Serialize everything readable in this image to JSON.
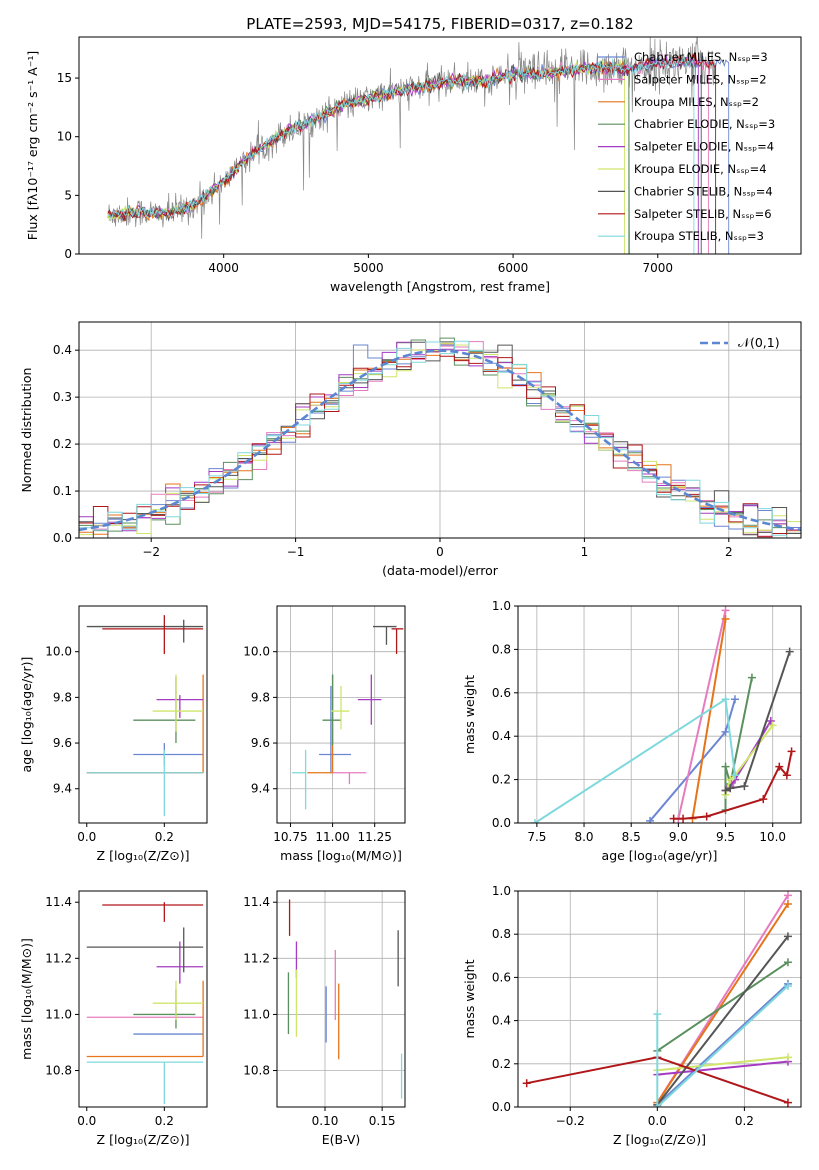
{
  "page": {
    "title": "PLATE=2593, MJD=54175, FIBERID=0317, z=0.182"
  },
  "colors": {
    "Chabrier MILES": "#6b86d2",
    "Salpeter MILES": "#e77bc0",
    "Kroupa MILES": "#e5741a",
    "Chabrier ELODIE": "#5b8f5e",
    "Salpeter ELODIE": "#a43bc2",
    "Kroupa ELODIE": "#cfe56b",
    "Chabrier STELIB": "#555555",
    "Salpeter STELIB": "#b0171a",
    "Kroupa STELIB": "#7fd8dd",
    "data": "#888888"
  },
  "chart_data": [
    {
      "id": "spectrum",
      "type": "line",
      "title": "PLATE=2593, MJD=54175, FIBERID=0317, z=0.182",
      "xlabel": "wavelength [Angstrom, rest frame]",
      "ylabel": "Flux [fλ10⁻¹⁷ erg cm⁻² s⁻¹ A⁻¹]",
      "xlim": [
        3000,
        7990
      ],
      "ylim": [
        0,
        18.5
      ],
      "xticks": [
        4000,
        5000,
        6000,
        7000
      ],
      "yticks": [
        0,
        5,
        10,
        15
      ],
      "legend_position": "right",
      "legend": [
        "Chabrier MILES, Nₛₛₚ=3",
        "Salpeter MILES, Nₛₛₚ=2",
        "Kroupa MILES, Nₛₛₚ=2",
        "Chabrier ELODIE, Nₛₛₚ=3",
        "Salpeter ELODIE, Nₛₛₚ=4",
        "Kroupa ELODIE, Nₛₛₚ=4",
        "Chabrier STELIB, Nₛₛₚ=4",
        "Salpeter STELIB, Nₛₛₚ=6",
        "Kroupa STELIB, Nₛₛₚ=3"
      ],
      "continuum": {
        "x": [
          3200,
          3400,
          3600,
          3800,
          4000,
          4200,
          4400,
          4600,
          4800,
          5000,
          5200,
          5400,
          5600,
          5800,
          6000,
          6200,
          6400,
          6600,
          6800,
          7000,
          7200,
          7400
        ],
        "y": [
          3.3,
          3.6,
          3.4,
          4.2,
          6.2,
          8.6,
          10.2,
          11.3,
          12.6,
          13.2,
          13.9,
          14.3,
          14.8,
          14.7,
          15.4,
          15.3,
          15.7,
          15.9,
          15.8,
          16.2,
          16.4,
          16.2
        ]
      },
      "models_end_x": [
        7490,
        7350,
        6805,
        6800,
        7280,
        6770,
        7300,
        7400,
        7250
      ]
    },
    {
      "id": "residuals",
      "type": "line",
      "xlabel": "(data-model)/error",
      "ylabel": "Normed distribution",
      "xlim": [
        -2.5,
        2.5
      ],
      "ylim": [
        0,
        0.46
      ],
      "xticks": [
        -2,
        -1,
        0,
        1,
        2
      ],
      "yticks": [
        0.0,
        0.1,
        0.2,
        0.3,
        0.4
      ],
      "grid": true,
      "legend_position": "top-right",
      "reference": {
        "name": "𝒩(0,1)",
        "mean": 0,
        "sigma": 1,
        "color": "#5b86d2",
        "style": "dashed"
      }
    },
    {
      "id": "age-vs-Z",
      "type": "scatter",
      "xlabel": "Z [log₁₀(Z/Z⊙)]",
      "ylabel": "age  [log₁₀(age/yr)]",
      "xlim": [
        -0.02,
        0.31
      ],
      "ylim": [
        9.25,
        10.2
      ],
      "xticks": [
        0.0,
        0.2
      ],
      "yticks": [
        9.4,
        9.6,
        9.8,
        10.0
      ],
      "grid": false,
      "points": [
        {
          "model": "Chabrier MILES",
          "x": 0.2,
          "xerr": [
            0.08,
            0.1
          ],
          "y": 9.55,
          "yerr": [
            0.05,
            0.05
          ]
        },
        {
          "model": "Salpeter MILES",
          "x": 0.3,
          "xerr": [
            0.3,
            0.0
          ],
          "y": 9.47,
          "yerr": [
            0.0,
            0.0
          ]
        },
        {
          "model": "Kroupa MILES",
          "x": 0.3,
          "xerr": [
            0.3,
            0.0
          ],
          "y": 9.47,
          "yerr": [
            0.0,
            0.43
          ]
        },
        {
          "model": "Chabrier ELODIE",
          "x": 0.23,
          "xerr": [
            0.11,
            0.05
          ],
          "y": 9.7,
          "yerr": [
            0.1,
            0.19
          ]
        },
        {
          "model": "Salpeter ELODIE",
          "x": 0.24,
          "xerr": [
            0.06,
            0.06
          ],
          "y": 9.79,
          "yerr": [
            0.08,
            0.02
          ]
        },
        {
          "model": "Kroupa ELODIE",
          "x": 0.23,
          "xerr": [
            0.06,
            0.07
          ],
          "y": 9.74,
          "yerr": [
            0.09,
            0.16
          ]
        },
        {
          "model": "Chabrier STELIB",
          "x": 0.25,
          "xerr": [
            0.25,
            0.05
          ],
          "y": 10.11,
          "yerr": [
            0.07,
            0.03
          ]
        },
        {
          "model": "Salpeter STELIB",
          "x": 0.2,
          "xerr": [
            0.16,
            0.1
          ],
          "y": 10.1,
          "yerr": [
            0.11,
            0.06
          ]
        },
        {
          "model": "Kroupa STELIB",
          "x": 0.2,
          "xerr": [
            0.2,
            0.1
          ],
          "y": 9.47,
          "yerr": [
            0.19,
            0.1
          ]
        }
      ]
    },
    {
      "id": "age-vs-mass",
      "type": "scatter",
      "xlabel": "mass [log₁₀(M/M⊙)]",
      "xlim": [
        10.67,
        11.43
      ],
      "ylim": [
        9.25,
        10.2
      ],
      "xticks": [
        10.75,
        11.0,
        11.25
      ],
      "yticks": [
        9.4,
        9.6,
        9.8,
        10.0
      ],
      "grid": true,
      "points": [
        {
          "model": "Chabrier MILES",
          "x": 10.99,
          "xerr": [
            0.07,
            0.12
          ],
          "y": 9.55,
          "yerr": [
            0.08,
            0.3
          ]
        },
        {
          "model": "Salpeter MILES",
          "x": 11.1,
          "xerr": [
            0.1,
            0.1
          ],
          "y": 9.47,
          "yerr": [
            0.05,
            0.0
          ]
        },
        {
          "model": "Kroupa MILES",
          "x": 11.0,
          "xerr": [
            0.15,
            0.0
          ],
          "y": 9.47,
          "yerr": [
            0.0,
            0.43
          ]
        },
        {
          "model": "Chabrier ELODIE",
          "x": 11.0,
          "xerr": [
            0.06,
            0.05
          ],
          "y": 9.7,
          "yerr": [
            0.11,
            0.2
          ]
        },
        {
          "model": "Salpeter ELODIE",
          "x": 11.23,
          "xerr": [
            0.08,
            0.06
          ],
          "y": 9.79,
          "yerr": [
            0.11,
            0.11
          ]
        },
        {
          "model": "Kroupa ELODIE",
          "x": 11.05,
          "xerr": [
            0.06,
            0.05
          ],
          "y": 9.74,
          "yerr": [
            0.08,
            0.11
          ]
        },
        {
          "model": "Chabrier STELIB",
          "x": 11.32,
          "xerr": [
            0.08,
            0.06
          ],
          "y": 10.11,
          "yerr": [
            0.08,
            0.0
          ]
        },
        {
          "model": "Salpeter STELIB",
          "x": 11.38,
          "xerr": [
            0.03,
            0.04
          ],
          "y": 10.1,
          "yerr": [
            0.11,
            0.0
          ]
        },
        {
          "model": "Kroupa STELIB",
          "x": 10.84,
          "xerr": [
            0.08,
            0.0
          ],
          "y": 9.47,
          "yerr": [
            0.16,
            0.1
          ]
        }
      ]
    },
    {
      "id": "massweight-vs-age",
      "type": "line",
      "xlabel": "age  [log₁₀(age/yr)]",
      "ylabel": "mass weight",
      "xlim": [
        7.3,
        10.3
      ],
      "ylim": [
        0,
        1.0
      ],
      "xticks": [
        7.5,
        8.0,
        8.5,
        9.0,
        9.5,
        10.0
      ],
      "yticks": [
        0.0,
        0.2,
        0.4,
        0.6,
        0.8,
        1.0
      ],
      "grid": true,
      "series": [
        {
          "model": "Chabrier MILES",
          "x": [
            8.7,
            9.5,
            9.6
          ],
          "y": [
            0.01,
            0.42,
            0.57
          ]
        },
        {
          "model": "Salpeter MILES",
          "x": [
            9.0,
            9.5
          ],
          "y": [
            0.02,
            0.98
          ]
        },
        {
          "model": "Kroupa MILES",
          "x": [
            9.15,
            9.5
          ],
          "y": [
            0.02,
            0.94
          ]
        },
        {
          "model": "Chabrier ELODIE",
          "x": [
            9.5,
            9.5,
            9.55,
            9.78
          ],
          "y": [
            0.06,
            0.26,
            0.18,
            0.67
          ]
        },
        {
          "model": "Salpeter ELODIE",
          "x": [
            9.5,
            9.55,
            9.6,
            9.98
          ],
          "y": [
            0.15,
            0.17,
            0.2,
            0.47
          ]
        },
        {
          "model": "Kroupa ELODIE",
          "x": [
            9.5,
            9.55,
            9.6,
            10.0
          ],
          "y": [
            0.13,
            0.2,
            0.22,
            0.45
          ]
        },
        {
          "model": "Chabrier STELIB",
          "x": [
            9.5,
            9.55,
            9.7,
            10.18
          ],
          "y": [
            0.15,
            0.16,
            0.17,
            0.79
          ]
        },
        {
          "model": "Salpeter STELIB",
          "x": [
            8.95,
            9.05,
            9.3,
            9.9,
            10.07,
            10.15,
            10.2
          ],
          "y": [
            0.02,
            0.02,
            0.03,
            0.11,
            0.26,
            0.22,
            0.33
          ]
        },
        {
          "model": "Kroupa STELIB",
          "x": [
            7.48,
            9.5,
            9.6
          ],
          "y": [
            0.0,
            0.57,
            0.22
          ]
        }
      ]
    },
    {
      "id": "mass-vs-Z",
      "type": "scatter",
      "xlabel": "Z [log₁₀(Z/Z⊙)]",
      "ylabel": "mass [log₁₀(M/M⊙)]",
      "xlim": [
        -0.02,
        0.31
      ],
      "ylim": [
        10.67,
        11.44
      ],
      "xticks": [
        0.0,
        0.2
      ],
      "yticks": [
        10.8,
        11.0,
        11.2,
        11.4
      ],
      "grid": false,
      "points": [
        {
          "model": "Chabrier MILES",
          "x": 0.2,
          "xerr": [
            0.08,
            0.1
          ],
          "y": 10.93,
          "yerr": [
            0.0,
            0.0
          ]
        },
        {
          "model": "Salpeter MILES",
          "x": 0.3,
          "xerr": [
            0.3,
            0.0
          ],
          "y": 10.99,
          "yerr": [
            0.0,
            0.0
          ]
        },
        {
          "model": "Kroupa MILES",
          "x": 0.3,
          "xerr": [
            0.3,
            0.0
          ],
          "y": 10.85,
          "yerr": [
            0.0,
            0.27
          ]
        },
        {
          "model": "Chabrier ELODIE",
          "x": 0.23,
          "xerr": [
            0.11,
            0.05
          ],
          "y": 11.0,
          "yerr": [
            0.05,
            0.09
          ]
        },
        {
          "model": "Salpeter ELODIE",
          "x": 0.24,
          "xerr": [
            0.06,
            0.06
          ],
          "y": 11.17,
          "yerr": [
            0.06,
            0.09
          ]
        },
        {
          "model": "Kroupa ELODIE",
          "x": 0.23,
          "xerr": [
            0.06,
            0.07
          ],
          "y": 11.04,
          "yerr": [
            0.06,
            0.08
          ]
        },
        {
          "model": "Chabrier STELIB",
          "x": 0.25,
          "xerr": [
            0.25,
            0.05
          ],
          "y": 11.24,
          "yerr": [
            0.09,
            0.07
          ]
        },
        {
          "model": "Salpeter STELIB",
          "x": 0.2,
          "xerr": [
            0.16,
            0.1
          ],
          "y": 11.39,
          "yerr": [
            0.06,
            0.01
          ]
        },
        {
          "model": "Kroupa STELIB",
          "x": 0.2,
          "xerr": [
            0.2,
            0.1
          ],
          "y": 10.83,
          "yerr": [
            0.15,
            0.0
          ]
        }
      ]
    },
    {
      "id": "mass-vs-EBV",
      "type": "scatter",
      "xlabel": "E(B-V)",
      "xlim": [
        0.058,
        0.17
      ],
      "ylim": [
        10.67,
        11.44
      ],
      "xticks": [
        0.1,
        0.15
      ],
      "yticks": [
        10.8,
        11.0,
        11.2,
        11.4
      ],
      "grid": true,
      "points": [
        {
          "model": "Chabrier MILES",
          "x": 0.101,
          "y": 11.0,
          "yerr": [
            0.1,
            0.1
          ]
        },
        {
          "model": "Salpeter MILES",
          "x": 0.109,
          "y": 11.11,
          "yerr": [
            0.13,
            0.12
          ]
        },
        {
          "model": "Kroupa MILES",
          "x": 0.112,
          "y": 10.98,
          "yerr": [
            0.14,
            0.13
          ]
        },
        {
          "model": "Chabrier ELODIE",
          "x": 0.068,
          "y": 11.02,
          "yerr": [
            0.09,
            0.13
          ]
        },
        {
          "model": "Salpeter ELODIE",
          "x": 0.075,
          "y": 11.2,
          "yerr": [
            0.07,
            0.06
          ]
        },
        {
          "model": "Kroupa ELODIE",
          "x": 0.075,
          "y": 11.04,
          "yerr": [
            0.12,
            0.12
          ]
        },
        {
          "model": "Chabrier STELIB",
          "x": 0.164,
          "y": 11.2,
          "yerr": [
            0.1,
            0.1
          ]
        },
        {
          "model": "Salpeter STELIB",
          "x": 0.069,
          "y": 11.34,
          "yerr": [
            0.06,
            0.07
          ]
        },
        {
          "model": "Kroupa STELIB",
          "x": 0.167,
          "y": 10.76,
          "yerr": [
            0.06,
            0.1
          ]
        }
      ]
    },
    {
      "id": "massweight-vs-Z",
      "type": "line",
      "xlabel": "Z [log₁₀(Z/Z⊙)]",
      "ylabel": "mass weight",
      "xlim": [
        -0.32,
        0.33
      ],
      "ylim": [
        0,
        1.0
      ],
      "xticks": [
        -0.2,
        0.0,
        0.2
      ],
      "yticks": [
        0.0,
        0.2,
        0.4,
        0.6,
        0.8,
        1.0
      ],
      "grid": true,
      "series": [
        {
          "model": "Chabrier MILES",
          "x": [
            0.0,
            0.3
          ],
          "y": [
            0.01,
            0.57
          ]
        },
        {
          "model": "Salpeter MILES",
          "x": [
            0.0,
            0.3
          ],
          "y": [
            0.02,
            0.98
          ]
        },
        {
          "model": "Kroupa MILES",
          "x": [
            0.0,
            0.3
          ],
          "y": [
            0.02,
            0.94
          ]
        },
        {
          "model": "Chabrier ELODIE",
          "x": [
            0.0,
            0.3
          ],
          "y": [
            0.26,
            0.67
          ]
        },
        {
          "model": "Salpeter ELODIE",
          "x": [
            0.0,
            0.3
          ],
          "y": [
            0.15,
            0.21
          ]
        },
        {
          "model": "Kroupa ELODIE",
          "x": [
            0.0,
            0.3
          ],
          "y": [
            0.17,
            0.23
          ]
        },
        {
          "model": "Chabrier STELIB",
          "x": [
            0.0,
            0.3
          ],
          "y": [
            0.01,
            0.79
          ]
        },
        {
          "model": "Salpeter STELIB",
          "x": [
            -0.3,
            0.0,
            0.3
          ],
          "y": [
            0.11,
            0.23,
            0.02
          ]
        },
        {
          "model": "Kroupa STELIB",
          "x": [
            0.0,
            0.0,
            0.3
          ],
          "y": [
            0.43,
            0.0,
            0.56
          ]
        }
      ]
    }
  ]
}
